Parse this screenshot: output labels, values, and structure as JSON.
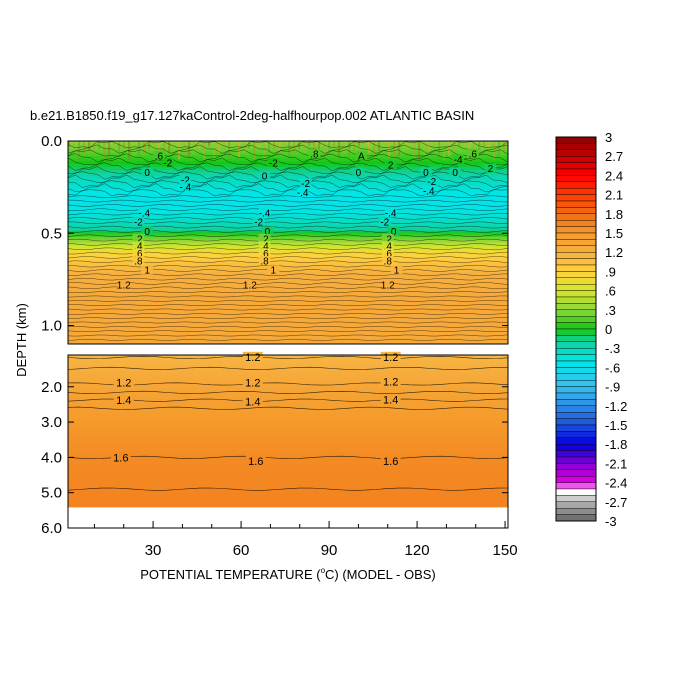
{
  "chart_data": {
    "type": "heatmap",
    "title": "b.e21.B1850.f19_g17.127kaControl-2deg-halfhourpop.002 ATLANTIC BASIN",
    "xlabel": "POTENTIAL TEMPERATURE (",
    "xlabel_sup": "o",
    "xlabel_tail": "C) (MODEL - OBS)",
    "ylabel": "DEPTH (km)",
    "x_range": [
      1,
      151
    ],
    "x_ticks": [
      "30",
      "60",
      "90",
      "120",
      "150"
    ],
    "x_tick_values": [
      30,
      60,
      90,
      120,
      150
    ],
    "upper_panel": {
      "depth_range": [
        0,
        1.1
      ],
      "y_ticks": [
        "0.0",
        "0.5",
        "1.0"
      ],
      "y_tick_values": [
        0,
        0.5,
        1.0
      ],
      "profile": [
        {
          "depth": 0.0,
          "value": 0.3
        },
        {
          "depth": 0.05,
          "value": 0.2
        },
        {
          "depth": 0.12,
          "value": 0.0
        },
        {
          "depth": 0.2,
          "value": -0.3
        },
        {
          "depth": 0.28,
          "value": -0.5
        },
        {
          "depth": 0.35,
          "value": -0.55
        },
        {
          "depth": 0.42,
          "value": -0.4
        },
        {
          "depth": 0.48,
          "value": -0.2
        },
        {
          "depth": 0.5,
          "value": 0.0
        },
        {
          "depth": 0.55,
          "value": 0.4
        },
        {
          "depth": 0.6,
          "value": 0.8
        },
        {
          "depth": 0.65,
          "value": 1.0
        },
        {
          "depth": 0.72,
          "value": 1.2
        },
        {
          "depth": 0.85,
          "value": 1.3
        },
        {
          "depth": 1.1,
          "value": 1.3
        }
      ],
      "contour_labels": [
        {
          "text": ".6",
          "x": 32,
          "depth": 0.08
        },
        {
          "text": "-2",
          "x": 35,
          "depth": 0.12
        },
        {
          "text": "0",
          "x": 28,
          "depth": 0.17
        },
        {
          "text": "-2",
          "x": 41,
          "depth": 0.21
        },
        {
          "text": "-.4",
          "x": 41,
          "depth": 0.25
        },
        {
          "text": "-2",
          "x": 71,
          "depth": 0.12
        },
        {
          "text": "0",
          "x": 68,
          "depth": 0.19
        },
        {
          "text": ".8",
          "x": 85,
          "depth": 0.07
        },
        {
          "text": "-2",
          "x": 82,
          "depth": 0.23
        },
        {
          "text": "-.4",
          "x": 81,
          "depth": 0.28
        },
        {
          "text": "A",
          "x": 101,
          "depth": 0.08
        },
        {
          "text": "0",
          "x": 100,
          "depth": 0.17
        },
        {
          "text": "2",
          "x": 111,
          "depth": 0.13
        },
        {
          "text": "0",
          "x": 123,
          "depth": 0.17
        },
        {
          "text": "-2",
          "x": 125,
          "depth": 0.22
        },
        {
          "text": "-.4",
          "x": 124,
          "depth": 0.27
        },
        {
          "text": "-4",
          "x": 134,
          "depth": 0.1
        },
        {
          "text": ".6",
          "x": 139,
          "depth": 0.07
        },
        {
          "text": "0",
          "x": 133,
          "depth": 0.17
        },
        {
          "text": "2",
          "x": 145,
          "depth": 0.15
        },
        {
          "text": "-.4",
          "x": 27,
          "depth": 0.39
        },
        {
          "text": "-2",
          "x": 25,
          "depth": 0.44
        },
        {
          "text": "0",
          "x": 28,
          "depth": 0.49
        },
        {
          "text": ".2",
          "x": 25,
          "depth": 0.53
        },
        {
          "text": ".4",
          "x": 25,
          "depth": 0.57
        },
        {
          "text": ".6",
          "x": 25,
          "depth": 0.61
        },
        {
          "text": ".8",
          "x": 25,
          "depth": 0.65
        },
        {
          "text": "1",
          "x": 28,
          "depth": 0.7
        },
        {
          "text": "1.2",
          "x": 20,
          "depth": 0.78
        },
        {
          "text": "-.4",
          "x": 68,
          "depth": 0.39
        },
        {
          "text": "-2",
          "x": 66,
          "depth": 0.44
        },
        {
          "text": "0",
          "x": 69,
          "depth": 0.49
        },
        {
          "text": ".2",
          "x": 68,
          "depth": 0.53
        },
        {
          "text": ".4",
          "x": 68,
          "depth": 0.57
        },
        {
          "text": ".6",
          "x": 68,
          "depth": 0.61
        },
        {
          "text": ".8",
          "x": 68,
          "depth": 0.65
        },
        {
          "text": "1",
          "x": 71,
          "depth": 0.7
        },
        {
          "text": "1.2",
          "x": 63,
          "depth": 0.78
        },
        {
          "text": "-.4",
          "x": 111,
          "depth": 0.39
        },
        {
          "text": "-2",
          "x": 109,
          "depth": 0.44
        },
        {
          "text": "0",
          "x": 112,
          "depth": 0.49
        },
        {
          "text": ".2",
          "x": 110,
          "depth": 0.53
        },
        {
          "text": ".4",
          "x": 110,
          "depth": 0.57
        },
        {
          "text": ".6",
          "x": 110,
          "depth": 0.61
        },
        {
          "text": ".8",
          "x": 110,
          "depth": 0.65
        },
        {
          "text": "1",
          "x": 113,
          "depth": 0.7
        },
        {
          "text": "1.2",
          "x": 110,
          "depth": 0.78
        }
      ]
    },
    "lower_panel": {
      "depth_range": [
        1.1,
        6.0
      ],
      "y_ticks": [
        "2.0",
        "3.0",
        "4.0",
        "5.0",
        "6.0"
      ],
      "y_tick_values": [
        2.0,
        3.0,
        4.0,
        5.0,
        6.0
      ],
      "data_bottom_depth": 5.4,
      "profile": [
        {
          "depth": 1.1,
          "value": 1.15
        },
        {
          "depth": 1.4,
          "value": 1.2
        },
        {
          "depth": 1.8,
          "value": 1.3
        },
        {
          "depth": 2.3,
          "value": 1.4
        },
        {
          "depth": 3.0,
          "value": 1.5
        },
        {
          "depth": 4.0,
          "value": 1.6
        },
        {
          "depth": 5.4,
          "value": 1.65
        }
      ],
      "contour_lines": [
        {
          "value": 1.2,
          "depth": 1.17
        },
        {
          "value": 1.2,
          "depth": 1.48
        },
        {
          "value": 1.2,
          "depth": 1.92
        },
        {
          "value": 1.2,
          "depth": 2.16
        },
        {
          "value": 1.4,
          "depth": 2.38
        },
        {
          "value": 1.4,
          "depth": 2.61
        },
        {
          "value": 1.6,
          "depth": 4.0
        },
        {
          "value": 1.6,
          "depth": 4.9
        }
      ],
      "contour_labels": [
        {
          "text": "1.2",
          "x": 64,
          "depth": 1.15
        },
        {
          "text": "1.2",
          "x": 111,
          "depth": 1.15
        },
        {
          "text": "1.2",
          "x": 20,
          "depth": 1.88
        },
        {
          "text": "1.2",
          "x": 64,
          "depth": 1.88
        },
        {
          "text": "1.2",
          "x": 111,
          "depth": 1.85
        },
        {
          "text": "1.4",
          "x": 20,
          "depth": 2.38
        },
        {
          "text": "1.4",
          "x": 64,
          "depth": 2.42
        },
        {
          "text": "1.4",
          "x": 111,
          "depth": 2.36
        },
        {
          "text": "1.6",
          "x": 19,
          "depth": 4.0
        },
        {
          "text": "1.6",
          "x": 65,
          "depth": 4.1
        },
        {
          "text": "1.6",
          "x": 111,
          "depth": 4.1
        }
      ]
    },
    "colorbar": {
      "labels": [
        "3",
        "2.7",
        "2.4",
        "2.1",
        "1.8",
        "1.5",
        "1.2",
        ".9",
        ".6",
        ".3",
        "0",
        "-.3",
        "-.6",
        "-.9",
        "-1.2",
        "-1.5",
        "-1.8",
        "-2.1",
        "-2.4",
        "-2.7",
        "-3"
      ],
      "label_values": [
        3,
        2.7,
        2.4,
        2.1,
        1.8,
        1.5,
        1.2,
        0.9,
        0.6,
        0.3,
        0,
        -0.3,
        -0.6,
        -0.9,
        -1.2,
        -1.5,
        -1.8,
        -2.1,
        -2.4,
        -2.7,
        -3
      ],
      "color_stops": [
        {
          "v": 3.0,
          "c": "#8b0000"
        },
        {
          "v": 2.4,
          "c": "#ff0000"
        },
        {
          "v": 2.1,
          "c": "#ff3c00"
        },
        {
          "v": 1.8,
          "c": "#f06c14"
        },
        {
          "v": 1.5,
          "c": "#f59a2b"
        },
        {
          "v": 1.2,
          "c": "#f6b040"
        },
        {
          "v": 0.9,
          "c": "#ffd23c"
        },
        {
          "v": 0.6,
          "c": "#d6e62a"
        },
        {
          "v": 0.3,
          "c": "#8ed63a"
        },
        {
          "v": 0.0,
          "c": "#14c814"
        },
        {
          "v": -0.2,
          "c": "#10d2a0"
        },
        {
          "v": -0.5,
          "c": "#00e6e6"
        },
        {
          "v": -0.9,
          "c": "#37c0f0"
        },
        {
          "v": -1.2,
          "c": "#2d8ee6"
        },
        {
          "v": -1.5,
          "c": "#2050dc"
        },
        {
          "v": -1.8,
          "c": "#0000e0"
        },
        {
          "v": -2.1,
          "c": "#8000d0"
        },
        {
          "v": -2.4,
          "c": "#e600e6"
        },
        {
          "v": -2.55,
          "c": "#ffffff"
        },
        {
          "v": -2.7,
          "c": "#b4b4b4"
        },
        {
          "v": -3.0,
          "c": "#646464"
        }
      ]
    },
    "surface_variability": true
  }
}
